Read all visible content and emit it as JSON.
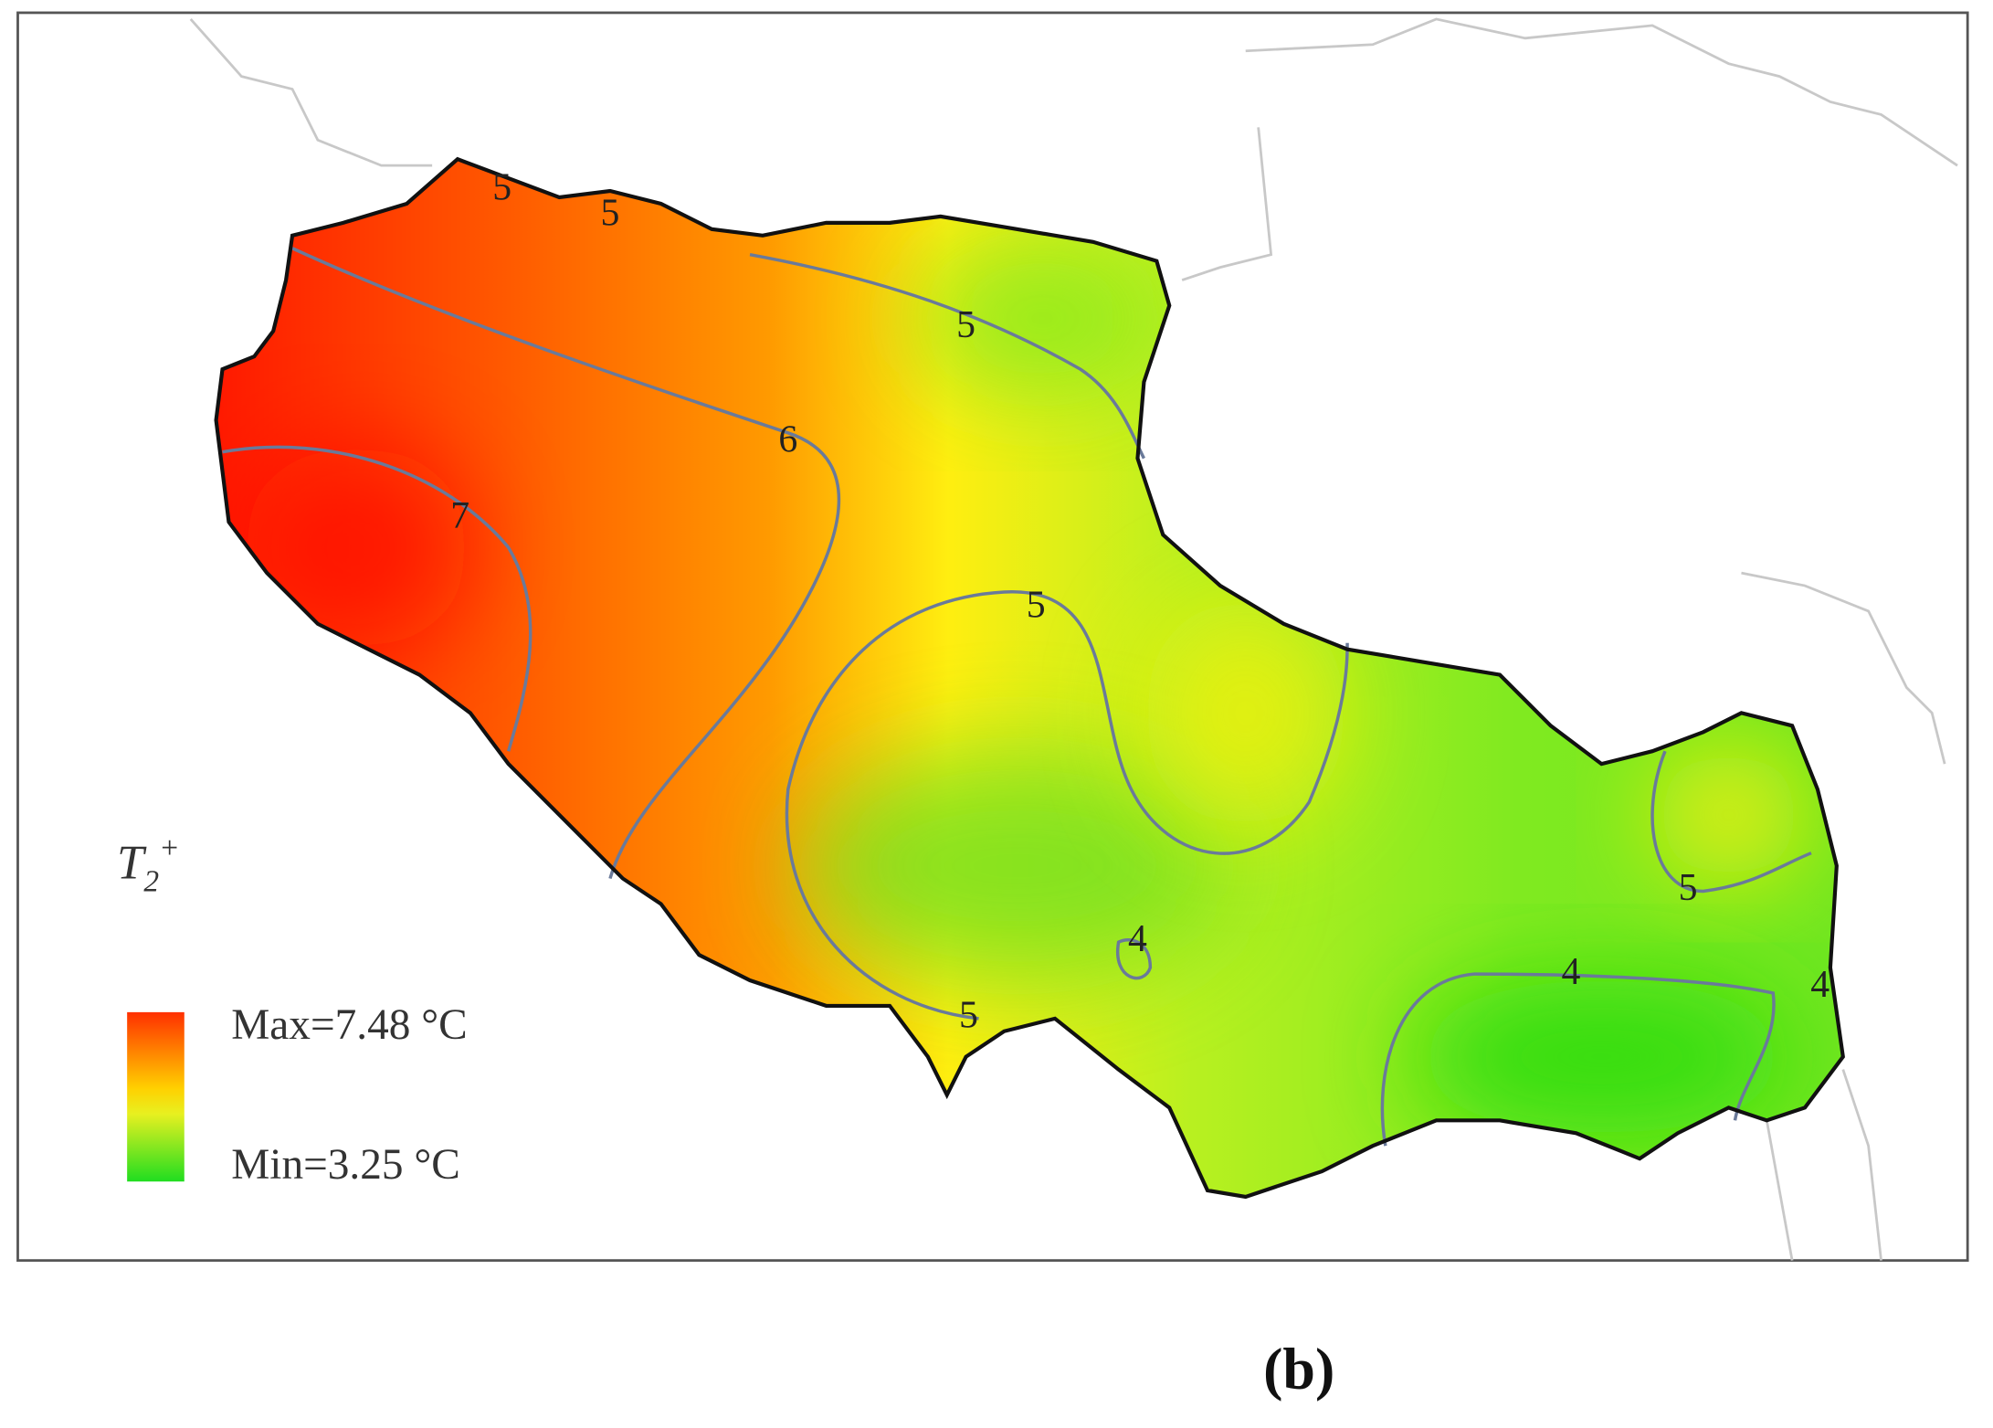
{
  "map": {
    "variable": {
      "base": "T",
      "subscript": "2",
      "superscript": "+"
    },
    "legend": {
      "max_label": "Max=7.48 °C",
      "min_label": "Min=3.25 °C"
    },
    "contour_labels": [
      5,
      5,
      5,
      6,
      7,
      5,
      5,
      5,
      4,
      4,
      4
    ]
  },
  "caption": "(b)"
}
